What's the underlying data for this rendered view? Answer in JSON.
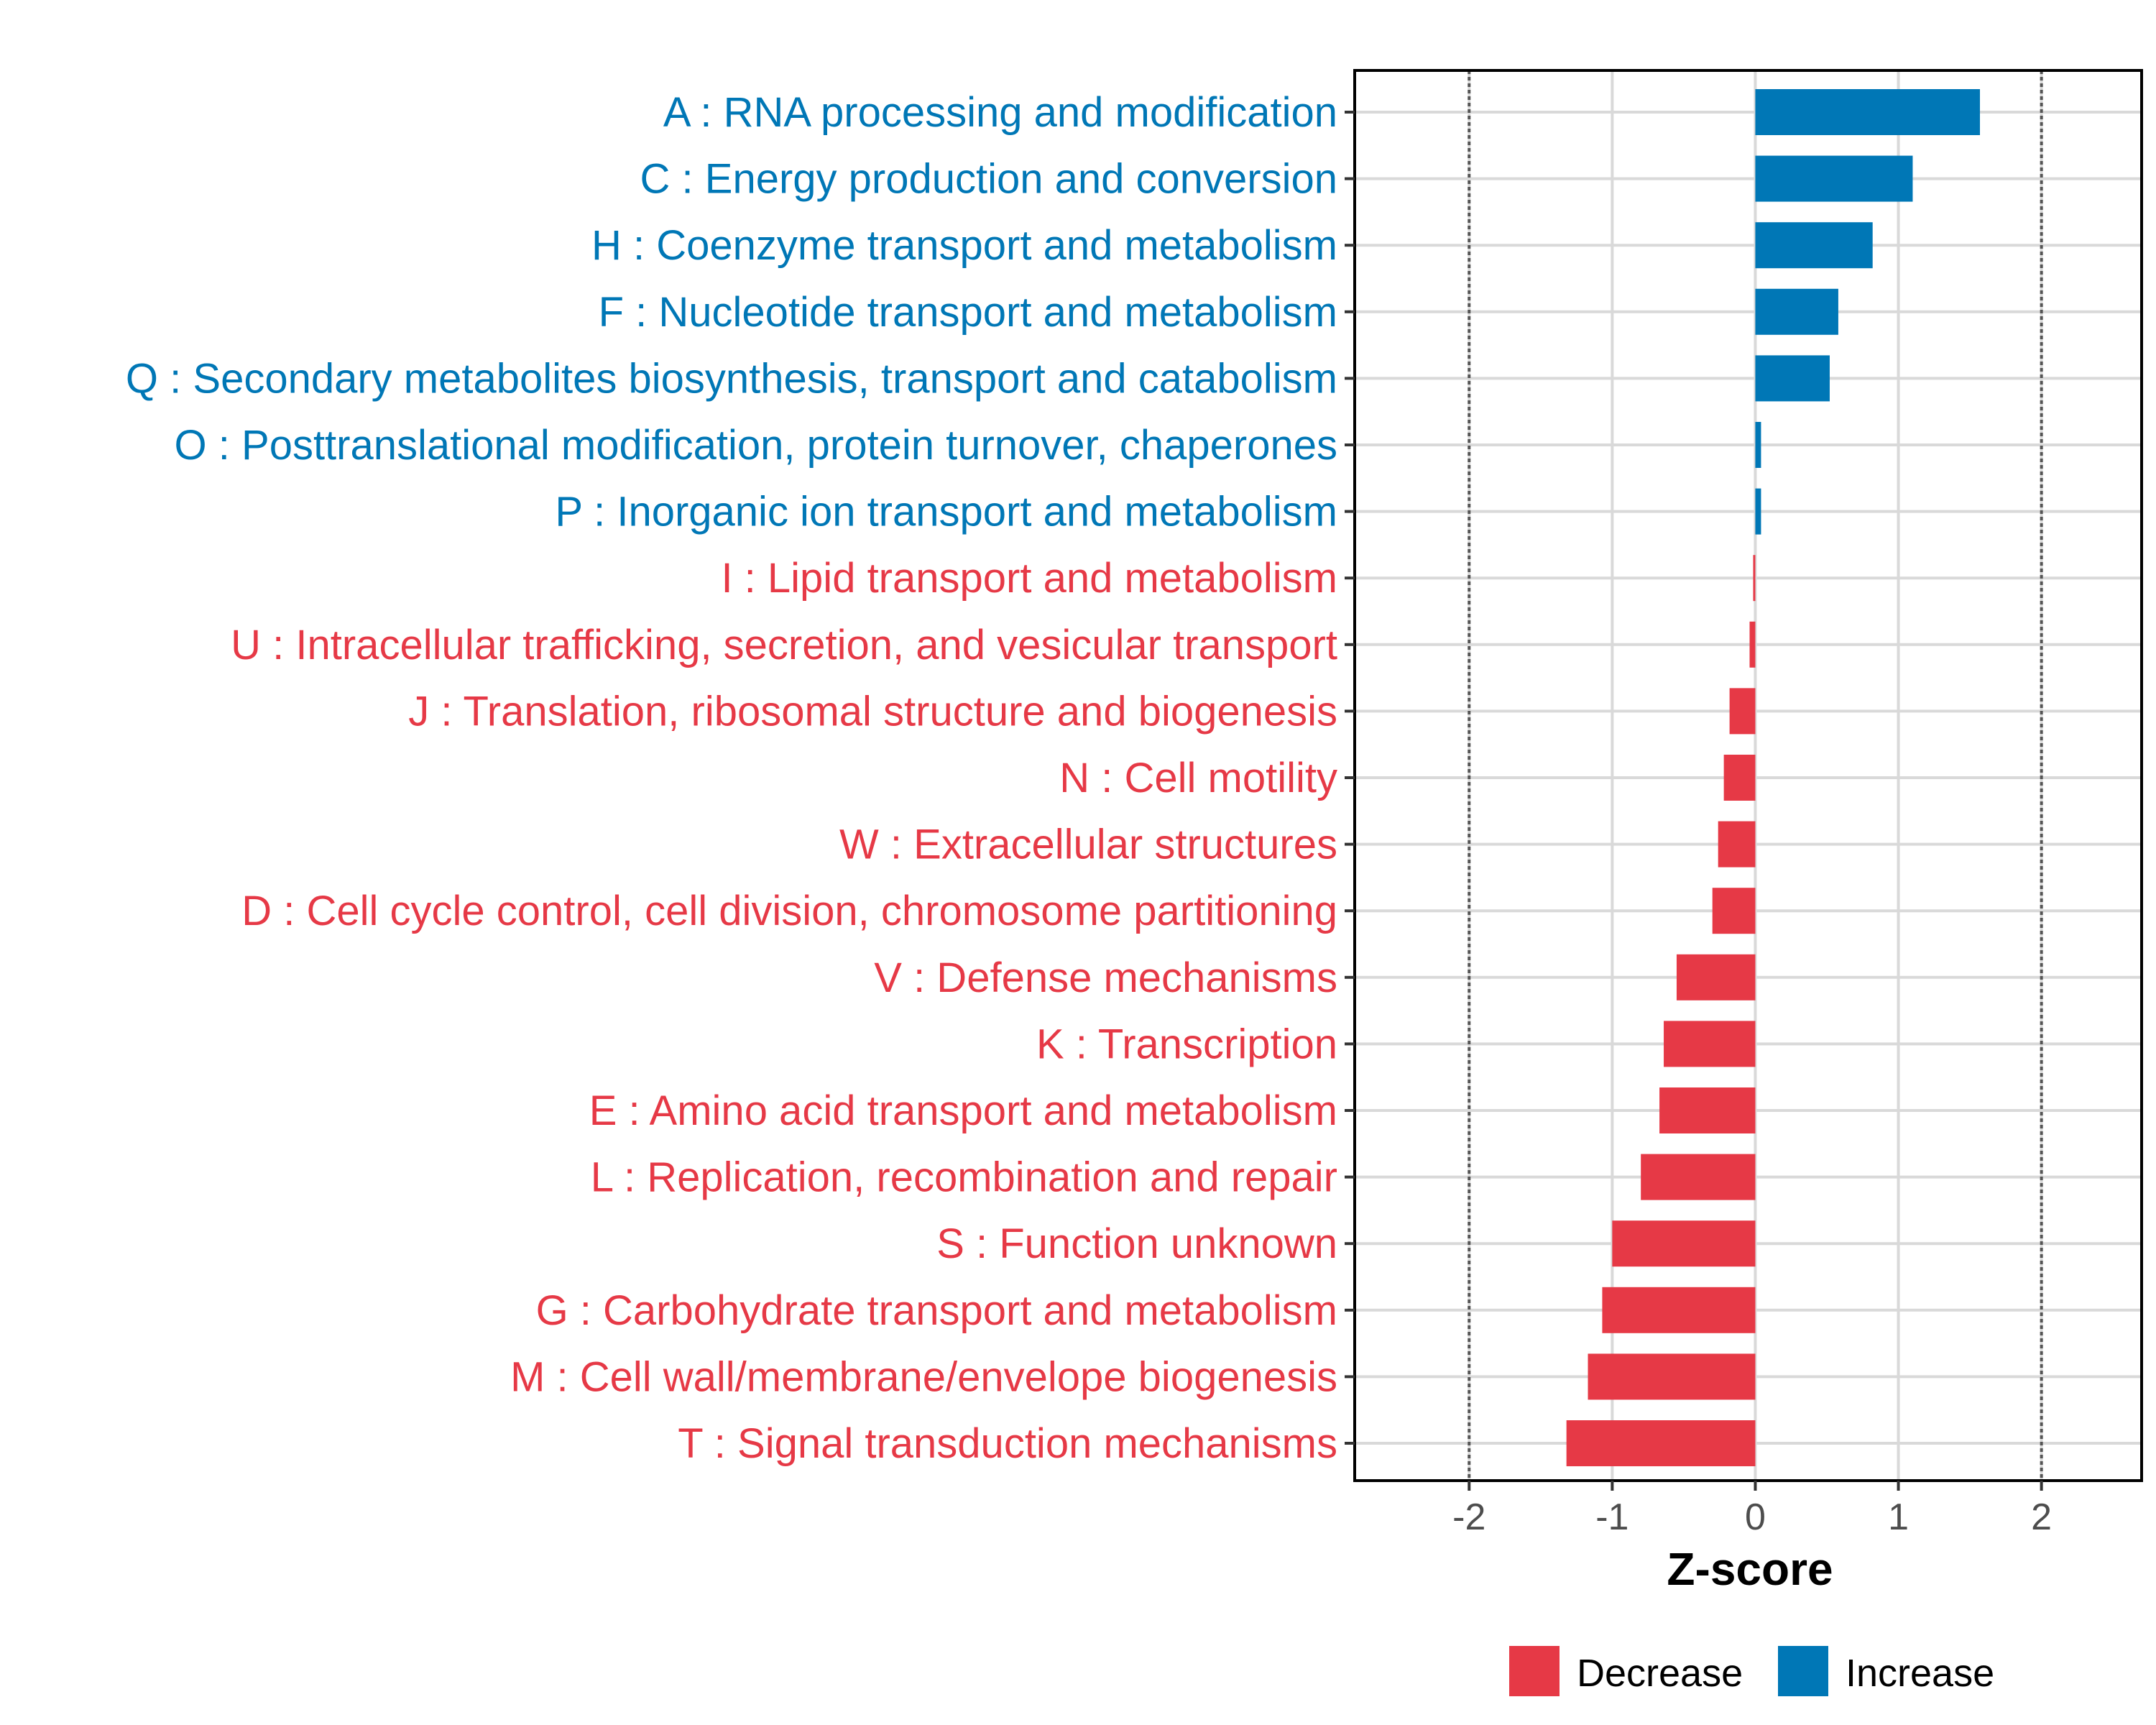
{
  "chart_data": {
    "type": "bar",
    "orientation": "horizontal",
    "title": "",
    "xlabel": "Z-score",
    "ylabel": "",
    "xlim": [
      -2.8,
      2.7
    ],
    "xticks": [
      -2,
      -1,
      0,
      1,
      2
    ],
    "xtick_labels": [
      "-2",
      "-1",
      "0",
      "1",
      "2"
    ],
    "reference_lines": [
      -2,
      2
    ],
    "grid": true,
    "categories": [
      "A : RNA processing and modification",
      "C : Energy production and conversion",
      "H : Coenzyme transport and metabolism",
      "F : Nucleotide transport and metabolism",
      "Q : Secondary metabolites biosynthesis, transport and catabolism",
      "O : Posttranslational modification, protein turnover, chaperones",
      "P : Inorganic ion transport and metabolism",
      "I : Lipid transport and metabolism",
      "U : Intracellular trafficking, secretion, and vesicular transport",
      "J : Translation, ribosomal structure and biogenesis",
      "N : Cell motility",
      "W : Extracellular structures",
      "D : Cell cycle control, cell division, chromosome partitioning",
      "V : Defense mechanisms",
      "K : Transcription",
      "E : Amino acid transport and metabolism",
      "L : Replication, recombination and repair",
      "S : Function unknown",
      "G : Carbohydrate transport and metabolism",
      "M : Cell wall/membrane/envelope biogenesis",
      "T : Signal transduction mechanisms"
    ],
    "values": [
      1.57,
      1.1,
      0.82,
      0.58,
      0.52,
      0.04,
      0.04,
      -0.01,
      -0.04,
      -0.18,
      -0.22,
      -0.26,
      -0.3,
      -0.55,
      -0.64,
      -0.67,
      -0.8,
      -1.0,
      -1.07,
      -1.17,
      -1.32
    ],
    "groups": [
      "Increase",
      "Increase",
      "Increase",
      "Increase",
      "Increase",
      "Increase",
      "Increase",
      "Decrease",
      "Decrease",
      "Decrease",
      "Decrease",
      "Decrease",
      "Decrease",
      "Decrease",
      "Decrease",
      "Decrease",
      "Decrease",
      "Decrease",
      "Decrease",
      "Decrease",
      "Decrease"
    ],
    "legend": {
      "position": "bottom",
      "entries": [
        {
          "label": "Decrease",
          "color": "#E63946"
        },
        {
          "label": "Increase",
          "color": "#0077B6"
        }
      ]
    }
  },
  "colors": {
    "Increase": "#0077B6",
    "Decrease": "#E63946",
    "grid": "#d9d9d9",
    "frame": "#000000",
    "refline": "#555555"
  }
}
